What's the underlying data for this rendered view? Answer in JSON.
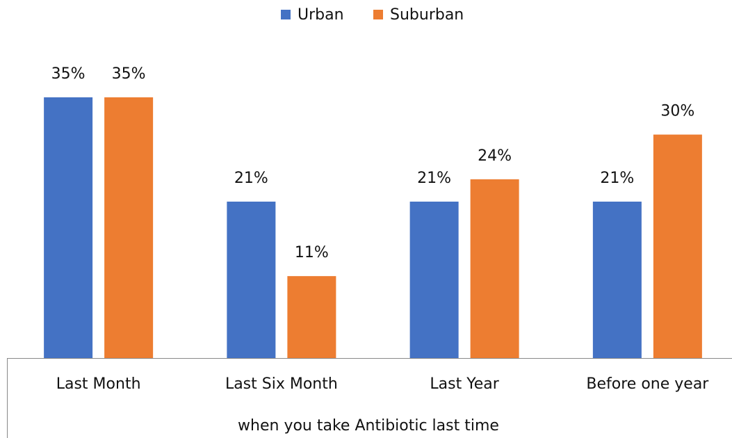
{
  "chart_data": {
    "type": "bar",
    "x_label": "when you take Antibiotic last time",
    "categories": [
      "Last Month",
      "Last Six Month",
      "Last Year",
      "Before one year"
    ],
    "series": [
      {
        "name": "Urban",
        "color": "#4472c4",
        "values": [
          35,
          21,
          21,
          21
        ],
        "value_labels": [
          "35%",
          "21%",
          "21%",
          "21%"
        ]
      },
      {
        "name": "Suburban",
        "color": "#ed7d31",
        "values": [
          35,
          11,
          24,
          30
        ],
        "value_labels": [
          "35%",
          "11%",
          "24%",
          "30%"
        ]
      }
    ],
    "legend": "top"
  }
}
